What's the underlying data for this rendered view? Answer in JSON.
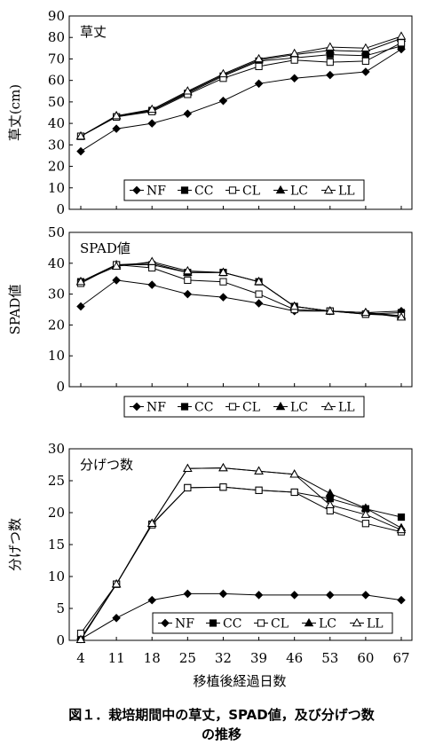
{
  "caption": {
    "line1": "図１．栽培期間中の草丈，SPAD値，及び分げつ数",
    "line2": "の推移"
  },
  "common": {
    "xlabel": "移植後経過日数",
    "x": [
      4,
      11,
      18,
      25,
      32,
      39,
      46,
      53,
      60,
      67
    ],
    "legend_items": [
      {
        "name": "NF",
        "marker": "diamond-filled"
      },
      {
        "name": "CC",
        "marker": "square-filled"
      },
      {
        "name": "CL",
        "marker": "square-open"
      },
      {
        "name": "LC",
        "marker": "triangle-filled"
      },
      {
        "name": "LL",
        "marker": "triangle-open"
      }
    ]
  },
  "chart_data": [
    {
      "type": "line",
      "title": "草丈",
      "ylabel": "草丈(cm)",
      "xlabel": "",
      "ylim": [
        0,
        90
      ],
      "yticks": [
        0,
        10,
        20,
        30,
        40,
        50,
        60,
        70,
        80,
        90
      ],
      "x": [
        4,
        11,
        18,
        25,
        32,
        39,
        46,
        53,
        60,
        67
      ],
      "grid": false,
      "legend_placement": "bottom-right",
      "series": [
        {
          "name": "NF",
          "values": [
            27,
            37.5,
            40,
            44.5,
            50.5,
            58.5,
            61,
            62.5,
            64,
            74.5
          ]
        },
        {
          "name": "CC",
          "values": [
            34,
            43,
            46,
            54,
            62,
            69,
            70.5,
            72,
            71.5,
            76
          ]
        },
        {
          "name": "CL",
          "values": [
            34,
            43,
            45.5,
            53.5,
            61,
            66.5,
            69.5,
            68.5,
            69,
            77.5
          ]
        },
        {
          "name": "LC",
          "values": [
            34,
            43.5,
            46,
            54.5,
            62.5,
            69.5,
            72,
            74,
            73.5,
            79.5
          ]
        },
        {
          "name": "LL",
          "values": [
            34,
            43.5,
            46.5,
            55,
            63,
            70,
            72.5,
            75.5,
            75,
            80.5
          ]
        }
      ]
    },
    {
      "type": "line",
      "title": "SPAD値",
      "ylabel": "SPAD値",
      "xlabel": "",
      "ylim": [
        0,
        50
      ],
      "yticks": [
        0,
        10,
        20,
        30,
        40,
        50
      ],
      "x": [
        4,
        11,
        18,
        25,
        32,
        39,
        46,
        53,
        60,
        67
      ],
      "grid": false,
      "legend_placement": "bottom-right",
      "series": [
        {
          "name": "NF",
          "values": [
            26,
            34.5,
            33,
            30,
            29,
            27,
            24.5,
            24.5,
            24,
            24.5
          ]
        },
        {
          "name": "CC",
          "values": [
            34,
            39.5,
            39.5,
            37,
            37,
            34,
            26,
            24.5,
            23.5,
            24
          ]
        },
        {
          "name": "CL",
          "values": [
            33.5,
            39.5,
            38.5,
            34.5,
            34,
            30,
            25,
            24.5,
            23.5,
            23
          ]
        },
        {
          "name": "LC",
          "values": [
            34,
            39.5,
            40,
            37,
            37,
            34,
            26,
            24.5,
            24,
            23
          ]
        },
        {
          "name": "LL",
          "values": [
            34,
            39,
            40.5,
            37.5,
            37,
            34,
            26,
            24.5,
            24,
            22.5
          ]
        }
      ]
    },
    {
      "type": "line",
      "title": "分げつ数",
      "ylabel": "分げつ数",
      "xlabel": "移植後経過日数",
      "ylim": [
        0,
        30
      ],
      "yticks": [
        0,
        5,
        10,
        15,
        20,
        25,
        30
      ],
      "x": [
        4,
        11,
        18,
        25,
        32,
        39,
        46,
        53,
        60,
        67
      ],
      "grid": false,
      "legend_placement": "bottom-right",
      "series": [
        {
          "name": "NF",
          "values": [
            0.2,
            3.5,
            6.3,
            7.3,
            7.3,
            7.1,
            7.1,
            7.1,
            7.1,
            6.3
          ]
        },
        {
          "name": "CC",
          "values": [
            0.3,
            8.8,
            18.2,
            23.9,
            24,
            23.5,
            23.2,
            22.2,
            20.6,
            19.3
          ]
        },
        {
          "name": "CL",
          "values": [
            1.1,
            8.8,
            18.1,
            23.9,
            24,
            23.5,
            23.2,
            20.3,
            18.3,
            17
          ]
        },
        {
          "name": "LC",
          "values": [
            0.1,
            8.8,
            18.3,
            26.9,
            27,
            26.5,
            26,
            23,
            20.7,
            17.6
          ]
        },
        {
          "name": "LL",
          "values": [
            0.1,
            8.8,
            18.3,
            26.9,
            27,
            26.5,
            26,
            21.2,
            19.7,
            17.3
          ]
        }
      ]
    }
  ]
}
